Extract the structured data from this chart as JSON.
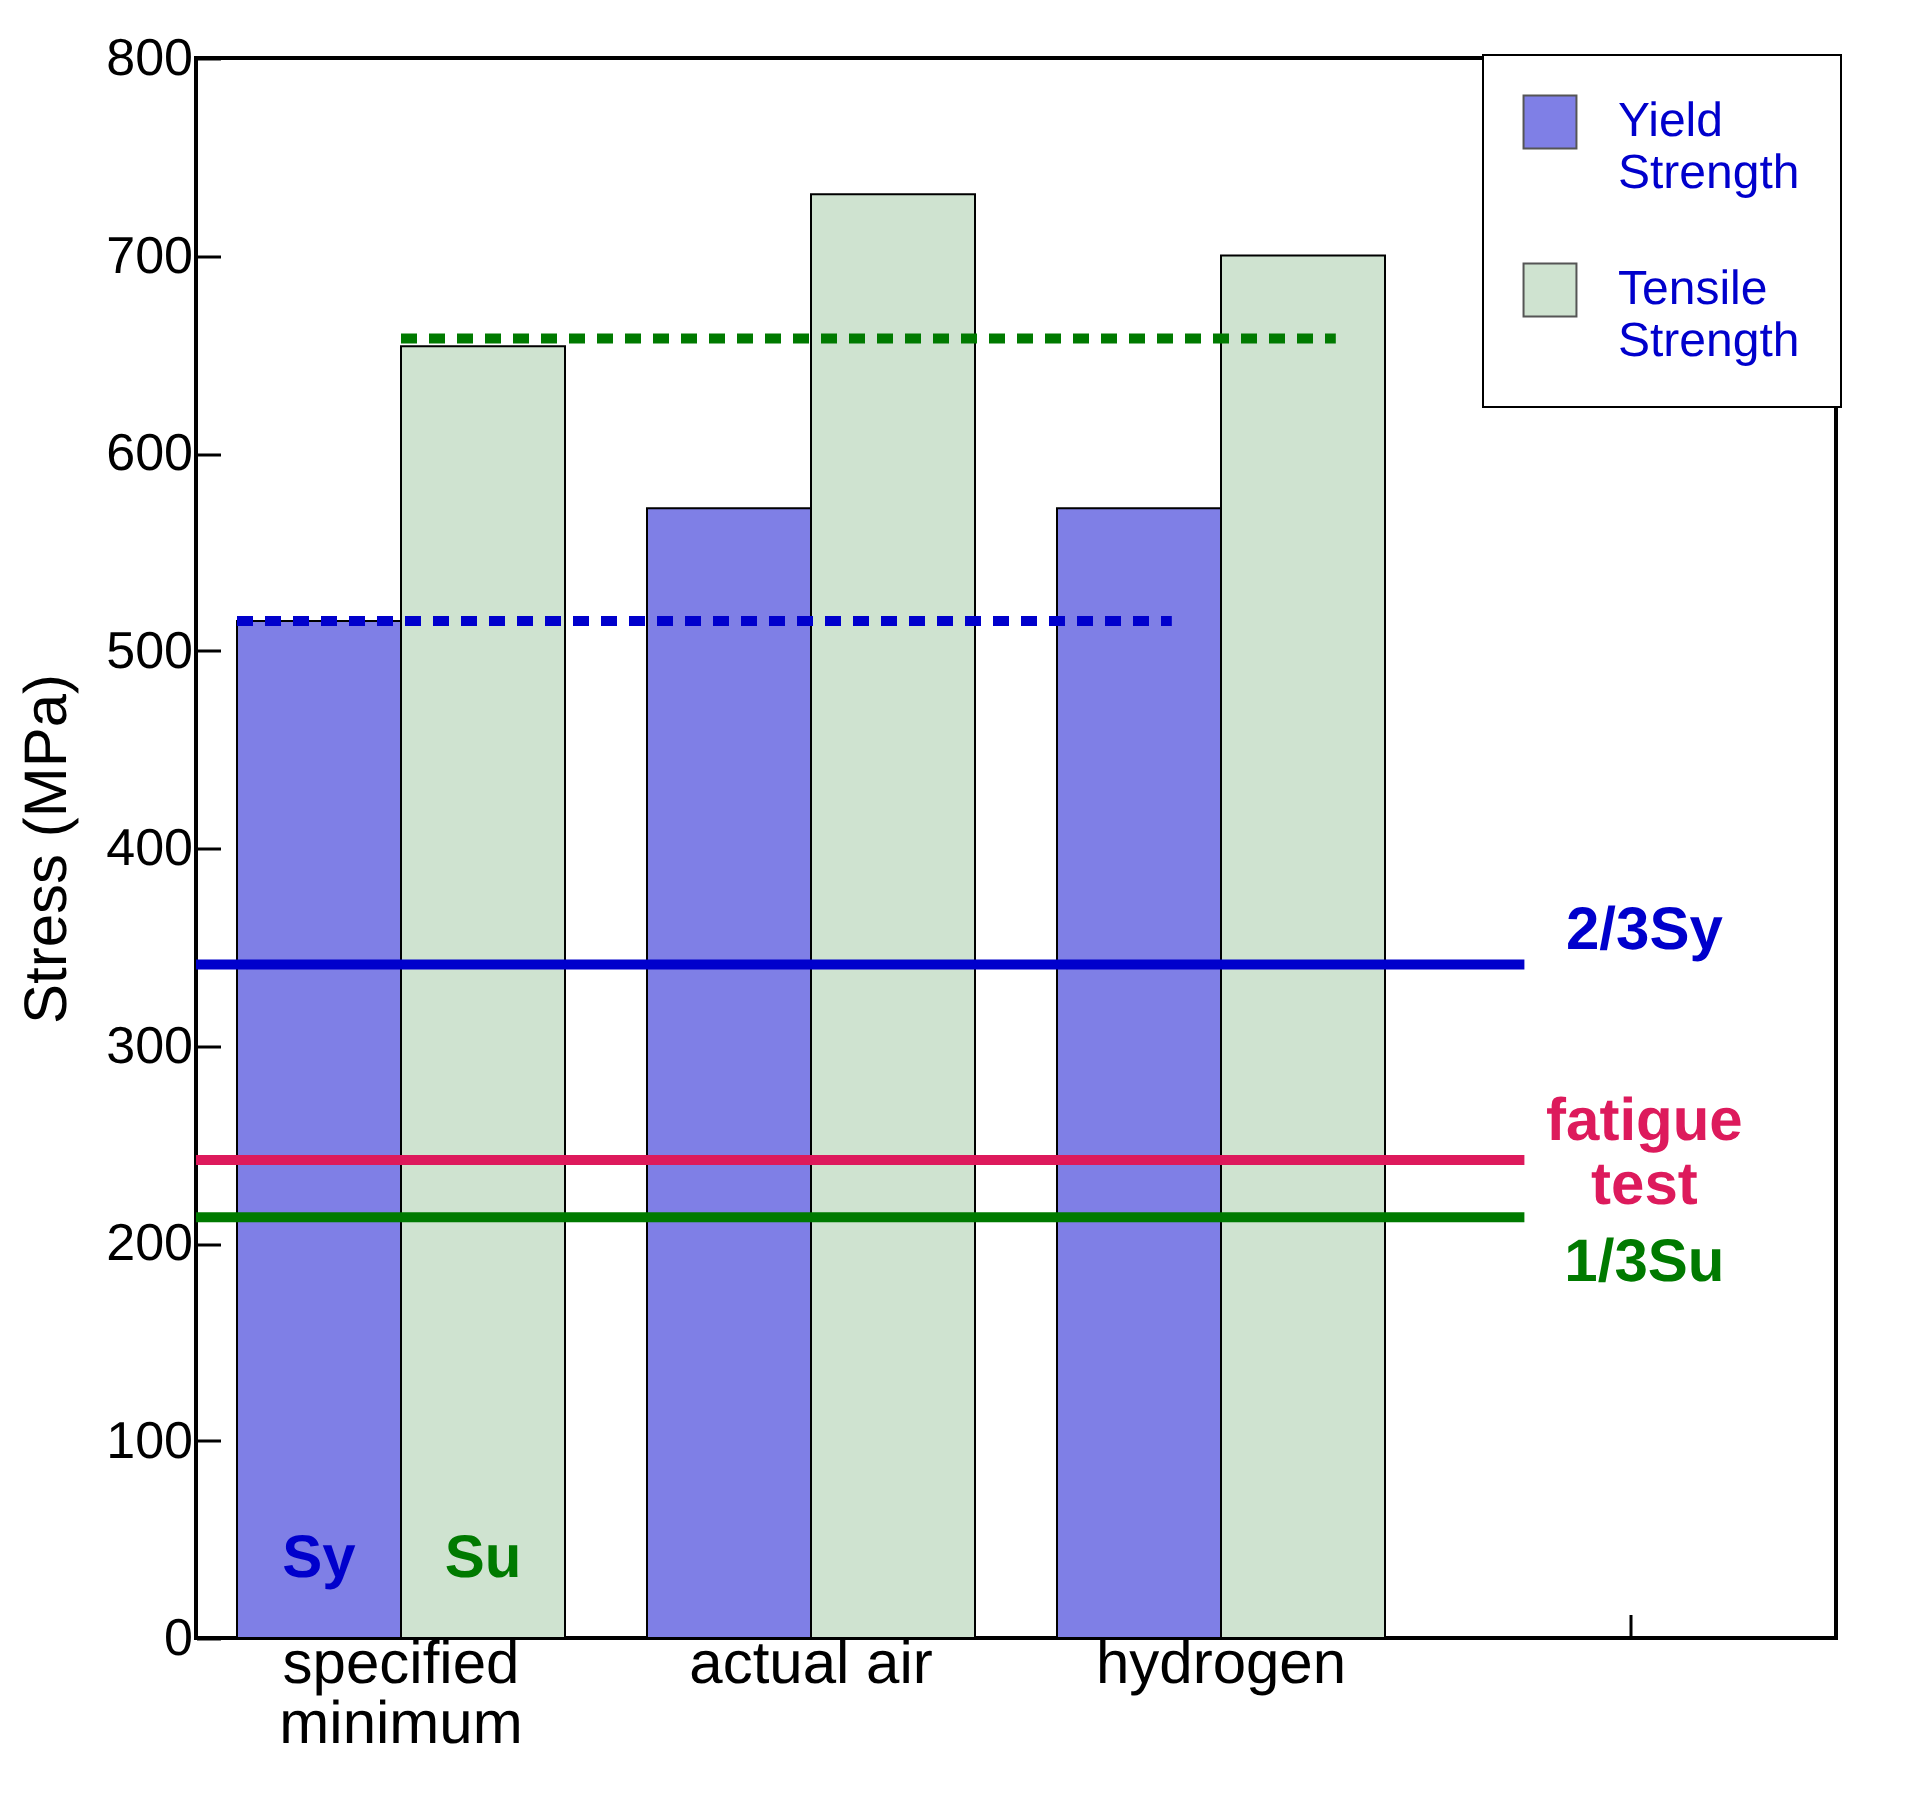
{
  "chart_data": {
    "type": "bar",
    "ylabel": "Stress (MPa)",
    "categories": [
      "specified minimum",
      "actual air",
      "hydrogen",
      null
    ],
    "series": [
      {
        "name": "Yield Strength",
        "color": "#7f7fe6",
        "values": [
          515,
          572,
          572,
          null
        ]
      },
      {
        "name": "Tensile Strength",
        "color": "#cfe3d0",
        "values": [
          654,
          731,
          700,
          null
        ]
      }
    ],
    "ylim": [
      0,
      800
    ],
    "yticks": [
      0,
      100,
      200,
      300,
      400,
      500,
      600,
      700,
      800
    ],
    "ref_lines": [
      {
        "axis": "y",
        "value": 515,
        "color": "#0000cc",
        "line_style": "dashed"
      },
      {
        "axis": "y",
        "value": 658,
        "color": "#007a00",
        "line_style": "dashed"
      },
      {
        "axis": "y",
        "value": 341,
        "label": "2/3Sy",
        "color": "#0000cc",
        "line_style": "solid"
      },
      {
        "axis": "y",
        "value": 242,
        "label": "fatigue test",
        "color": "#dd1a5c",
        "line_style": "solid"
      },
      {
        "axis": "y",
        "value": 213,
        "label": "1/3Su",
        "color": "#007a00",
        "line_style": "solid"
      }
    ],
    "annotations": [
      {
        "text": "Sy",
        "x": "specified minimum",
        "y": 40
      },
      {
        "text": "Su",
        "x": "specified minimum",
        "y": 40
      }
    ],
    "legend": "top right",
    "grid": false
  }
}
